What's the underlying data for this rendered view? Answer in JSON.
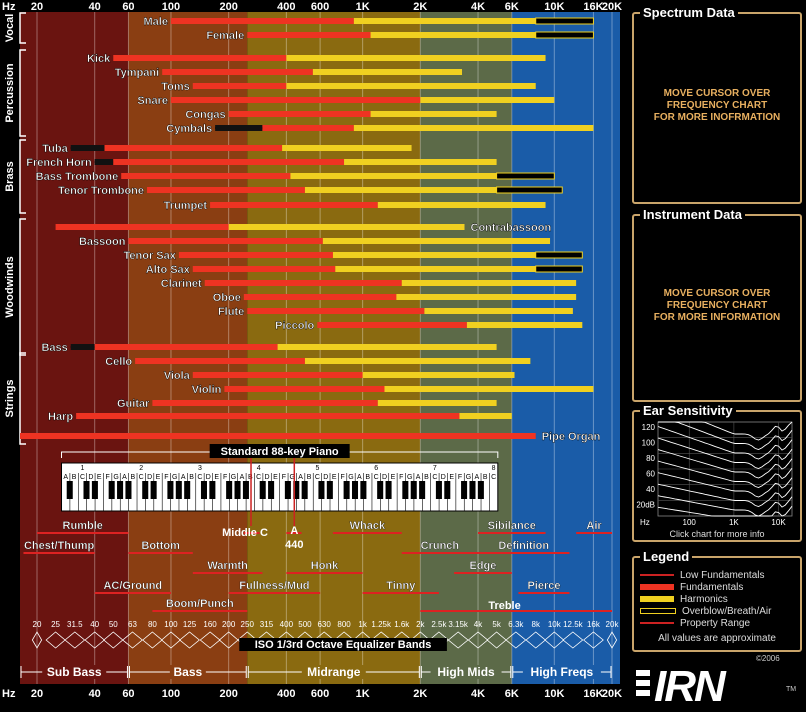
{
  "chart_data": {
    "type": "bar",
    "title": "",
    "x_scale": "log",
    "xlim": [
      16,
      20000
    ],
    "axis_prefix": "Hz",
    "top_ticks": [
      {
        "label": "20",
        "f": 20
      },
      {
        "label": "40",
        "f": 40
      },
      {
        "label": "60",
        "f": 60
      },
      {
        "label": "100",
        "f": 100
      },
      {
        "label": "200",
        "f": 200
      },
      {
        "label": "400",
        "f": 400
      },
      {
        "label": "600",
        "f": 600
      },
      {
        "label": "1K",
        "f": 1000
      },
      {
        "label": "2K",
        "f": 2000
      },
      {
        "label": "4K",
        "f": 4000
      },
      {
        "label": "6K",
        "f": 6000
      },
      {
        "label": "10K",
        "f": 10000
      },
      {
        "label": "16K",
        "f": 16000
      },
      {
        "label": "20K",
        "f": 20000
      }
    ],
    "bands": [
      {
        "name": "Sub Bass",
        "from": 20,
        "to": 60,
        "color": "#6a1410"
      },
      {
        "name": "Bass",
        "from": 60,
        "to": 250,
        "color": "#8a3e12"
      },
      {
        "name": "Midrange",
        "from": 250,
        "to": 2000,
        "color": "#8a6a10"
      },
      {
        "name": "High Mids",
        "from": 2000,
        "to": 6000,
        "color": "#5c6a48"
      },
      {
        "name": "High Freqs",
        "from": 6000,
        "to": 20000,
        "color": "#1a5ca8"
      }
    ],
    "groups": [
      {
        "name": "Vocal",
        "rows": [
          0,
          1
        ]
      },
      {
        "name": "Percussion",
        "rows": [
          2,
          7
        ]
      },
      {
        "name": "Brass",
        "rows": [
          8,
          12
        ]
      },
      {
        "name": "Woodwinds",
        "rows": [
          13,
          21
        ]
      },
      {
        "name": "Strings",
        "rows": [
          22,
          27
        ]
      }
    ],
    "series": [
      {
        "name": "Low Fundamentals",
        "color": "#cc2222"
      },
      {
        "name": "Fundamentals",
        "color": "#ee3322"
      },
      {
        "name": "Harmonics",
        "color": "#f0d020"
      },
      {
        "name": "Overblow/Breath/Air",
        "color": "#f0d020"
      },
      {
        "name": "Property Range",
        "color": "#cc2222"
      }
    ],
    "instruments": [
      {
        "name": "Male",
        "label_side": "left",
        "fund": [
          100,
          900
        ],
        "harm": [
          900,
          8000
        ],
        "air": [
          8000,
          16000
        ]
      },
      {
        "name": "Female",
        "label_side": "left",
        "fund": [
          250,
          1100
        ],
        "harm": [
          1100,
          8000
        ],
        "air": [
          8000,
          16000
        ]
      },
      {
        "name": "Kick",
        "label_side": "left",
        "fund": [
          50,
          400
        ],
        "harm": [
          400,
          9000
        ]
      },
      {
        "name": "Tympani",
        "label_side": "left",
        "fund": [
          90,
          550
        ],
        "harm": [
          550,
          3300
        ]
      },
      {
        "name": "Toms",
        "label_side": "left",
        "fund": [
          130,
          400
        ],
        "harm": [
          400,
          8000
        ]
      },
      {
        "name": "Snare",
        "label_side": "left",
        "fund": [
          100,
          2000
        ],
        "harm": [
          2000,
          10000
        ]
      },
      {
        "name": "Congas",
        "label_side": "left",
        "fund": [
          200,
          1100
        ],
        "harm": [
          1100,
          5000
        ]
      },
      {
        "name": "Cymbals",
        "label_side": "left",
        "low": [
          170,
          300
        ],
        "fund": [
          300,
          900
        ],
        "harm": [
          900,
          16000
        ]
      },
      {
        "name": "Tuba",
        "label_side": "left",
        "low": [
          30,
          45
        ],
        "fund": [
          45,
          380
        ],
        "harm": [
          380,
          1800
        ]
      },
      {
        "name": "French Horn",
        "label_side": "left",
        "low": [
          40,
          50
        ],
        "fund": [
          50,
          800
        ],
        "harm": [
          800,
          5000
        ]
      },
      {
        "name": "Bass Trombone",
        "label_side": "left",
        "fund": [
          55,
          420
        ],
        "harm": [
          420,
          5000
        ],
        "air": [
          5000,
          10000
        ]
      },
      {
        "name": "Tenor Trombone",
        "label_side": "left",
        "fund": [
          75,
          500
        ],
        "harm": [
          500,
          5000
        ],
        "air": [
          5000,
          11000
        ]
      },
      {
        "name": "Trumpet",
        "label_side": "left",
        "fund": [
          160,
          1200
        ],
        "harm": [
          1200,
          9000
        ]
      },
      {
        "name": "Contrabassoon",
        "label_side": "right",
        "fund": [
          25,
          200
        ],
        "harm": [
          200,
          3400
        ]
      },
      {
        "name": "Bassoon",
        "label_side": "left",
        "fund": [
          60,
          620
        ],
        "harm": [
          620,
          9500
        ]
      },
      {
        "name": "Tenor Sax",
        "label_side": "left",
        "fund": [
          110,
          700
        ],
        "harm": [
          700,
          8000
        ],
        "air": [
          8000,
          14000
        ]
      },
      {
        "name": "Alto Sax",
        "label_side": "left",
        "fund": [
          130,
          720
        ],
        "harm": [
          720,
          8000
        ],
        "air": [
          8000,
          14000
        ]
      },
      {
        "name": "Clarinet",
        "label_side": "left",
        "fund": [
          150,
          1600
        ],
        "harm": [
          1600,
          13000
        ]
      },
      {
        "name": "Oboe",
        "label_side": "left",
        "fund": [
          240,
          1500
        ],
        "harm": [
          1500,
          13000
        ]
      },
      {
        "name": "Flute",
        "label_side": "left",
        "fund": [
          250,
          2100
        ],
        "harm": [
          2100,
          12500
        ]
      },
      {
        "name": "Piccolo",
        "label_side": "left",
        "fund": [
          580,
          3500
        ],
        "harm": [
          3500,
          14000
        ]
      },
      {
        "name": "Bass",
        "label_side": "left",
        "low": [
          30,
          40
        ],
        "fund": [
          40,
          360
        ],
        "harm": [
          360,
          5000
        ]
      },
      {
        "name": "Cello",
        "label_side": "left",
        "fund": [
          65,
          500
        ],
        "harm": [
          500,
          7500
        ]
      },
      {
        "name": "Viola",
        "label_side": "left",
        "fund": [
          130,
          1000
        ],
        "harm": [
          1000,
          6200
        ]
      },
      {
        "name": "Violin",
        "label_side": "left",
        "fund": [
          190,
          1300
        ],
        "harm": [
          1300,
          16000
        ]
      },
      {
        "name": "Guitar",
        "label_side": "left",
        "fund": [
          80,
          1200
        ],
        "harm": [
          1200,
          5000
        ]
      },
      {
        "name": "Harp",
        "label_side": "left",
        "fund": [
          32,
          3200
        ],
        "harm": [
          3200,
          6000
        ]
      },
      {
        "name": "Pipe Organ",
        "label_side": "right",
        "fund": [
          16,
          8000
        ]
      }
    ],
    "piano": {
      "label": "Standard 88-key Piano",
      "range": [
        27.5,
        4186
      ],
      "octave_numbers": [
        "0",
        "1",
        "2",
        "3",
        "4",
        "5",
        "6",
        "7",
        "8"
      ],
      "note_names": [
        "C",
        "D",
        "E",
        "F",
        "G",
        "A",
        "B"
      ]
    },
    "descriptors": [
      {
        "name": "Rumble",
        "from": 20,
        "to": 60,
        "row": 0
      },
      {
        "name": "Chest/Thump",
        "from": 16,
        "to": 40,
        "row": 1
      },
      {
        "name": "Bottom",
        "from": 60,
        "to": 130,
        "row": 1
      },
      {
        "name": "AC/Ground",
        "from": 40,
        "to": 100,
        "row": 3
      },
      {
        "name": "Warmth",
        "from": 130,
        "to": 300,
        "row": 2
      },
      {
        "name": "Boom/Punch",
        "from": 80,
        "to": 250,
        "row": 4
      },
      {
        "name": "Middle C",
        "from": 240,
        "to": 290,
        "row": 0
      },
      {
        "name": "A 440",
        "from": 400,
        "to": 480,
        "row": 0
      },
      {
        "name": "Fullness/Mud",
        "from": 200,
        "to": 600,
        "row": 3
      },
      {
        "name": "Honk",
        "from": 400,
        "to": 1000,
        "row": 2
      },
      {
        "name": "Whack",
        "from": 700,
        "to": 1600,
        "row": 0
      },
      {
        "name": "Tinny",
        "from": 1000,
        "to": 2500,
        "row": 3
      },
      {
        "name": "Crunch",
        "from": 1600,
        "to": 4000,
        "row": 1
      },
      {
        "name": "Edge",
        "from": 3000,
        "to": 6000,
        "row": 2
      },
      {
        "name": "Sibilance",
        "from": 4000,
        "to": 9000,
        "row": 0
      },
      {
        "name": "Definition",
        "from": 4000,
        "to": 12000,
        "row": 1
      },
      {
        "name": "Pierce",
        "from": 6500,
        "to": 12000,
        "row": 3
      },
      {
        "name": "Air",
        "from": 13000,
        "to": 20000,
        "row": 0
      },
      {
        "name": "Treble",
        "from": 2000,
        "to": 20000,
        "row": 4
      }
    ],
    "eq": {
      "label": "ISO 1/3rd Octave Equalizer Bands",
      "bands": [
        "20",
        "25",
        "31.5",
        "40",
        "50",
        "63",
        "80",
        "100",
        "125",
        "160",
        "200",
        "250",
        "315",
        "400",
        "500",
        "630",
        "800",
        "1k",
        "1.25k",
        "1.6k",
        "2k",
        "2.5k",
        "3.15k",
        "4k",
        "5k",
        "6.3k",
        "8k",
        "10k",
        "12.5k",
        "16k",
        "20k"
      ]
    }
  },
  "panels": {
    "spectrum": {
      "title": "Spectrum Data",
      "message": [
        "MOVE CURSOR OVER",
        "FREQUENCY CHART",
        "FOR MORE INOFRMATION"
      ]
    },
    "instrument": {
      "title": "Instrument Data",
      "message": [
        "MOVE CURSOR OVER",
        "FREQUENCY CHART",
        "FOR MORE INFORMATION"
      ]
    },
    "ear": {
      "title": "Ear Sensitivity",
      "y_ticks": [
        "120",
        "100",
        "80",
        "60",
        "40",
        "20dB"
      ],
      "x_ticks": [
        "Hz",
        "100",
        "1K",
        "10K"
      ],
      "note": "Click chart for more info"
    },
    "legend": {
      "title": "Legend",
      "items": [
        "Low Fundamentals",
        "Fundamentals",
        "Harmonics",
        "Overblow/Breath/Air",
        "Property Range"
      ],
      "note": "All values are approximate"
    }
  },
  "logo": {
    "text": "IRN",
    "year": "©2006",
    "tm": "TM"
  }
}
